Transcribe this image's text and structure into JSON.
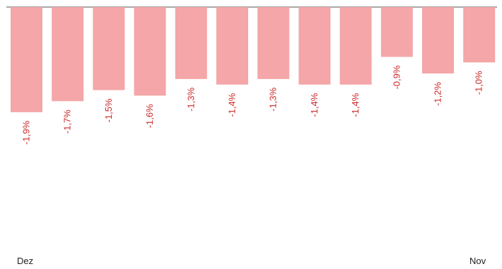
{
  "chart_data": {
    "type": "bar",
    "categories": [
      "Dez",
      "",
      "",
      "",
      "",
      "",
      "",
      "",
      "",
      "",
      "",
      "Nov"
    ],
    "values": [
      -1.9,
      -1.7,
      -1.5,
      -1.6,
      -1.3,
      -1.4,
      -1.3,
      -1.4,
      -1.4,
      -0.9,
      -1.2,
      -1.0
    ],
    "data_labels": [
      "-1,9%",
      "-1,7%",
      "-1,5%",
      "-1,6%",
      "-1,3%",
      "-1,4%",
      "-1,3%",
      "-1,4%",
      "-1,4%",
      "-0,9%",
      "-1,2%",
      "-1,0%"
    ],
    "x_tick_labels": {
      "start": "Dez",
      "end": "Nov"
    },
    "title": "",
    "xlabel": "",
    "ylabel": "",
    "ylim": [
      -1.9,
      0
    ],
    "grid": false,
    "legend": "none",
    "colors": {
      "bar": "#f4a6a8",
      "label": "#cc2a2a",
      "axis": "#8c8c8c",
      "tick_text": "#222222"
    }
  }
}
